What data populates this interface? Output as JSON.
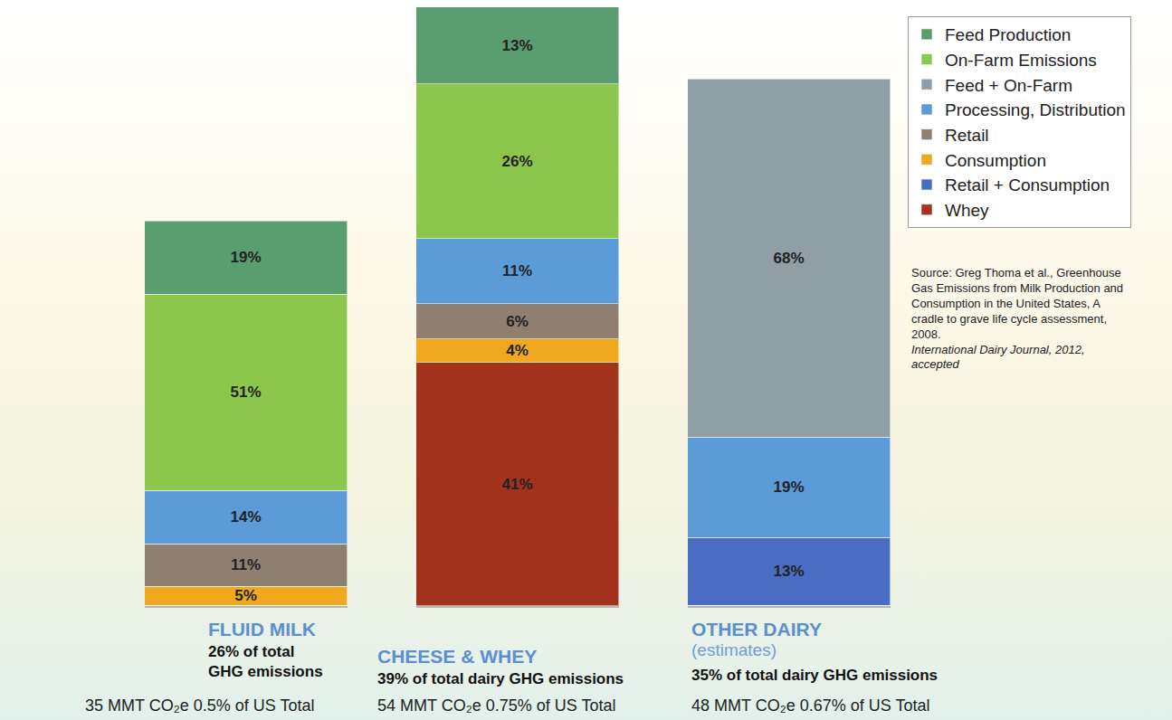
{
  "chart_data": {
    "type": "bar",
    "stacked": true,
    "data_labels": true,
    "tick_labels": false,
    "grid": false,
    "legend": "top right",
    "categories": [
      "FLUID MILK",
      "CHEESE & WHEY",
      "OTHER DAIRY"
    ],
    "notes": [
      null,
      null,
      "(estimates)"
    ],
    "shares": [
      "26% of total GHG emissions",
      "39% of total dairy GHG emissions",
      "35% of total dairy GHG emissions"
    ],
    "emissions": [
      "35 MMT CO₂e 0.5% of US Total",
      "54 MMT CO₂e 0.75% of US Total",
      "48 MMT CO₂e 0.67% of US Total"
    ],
    "totals": [
      35,
      54,
      48
    ],
    "ylim": [
      0,
      101
    ],
    "series": [
      {
        "name": "Feed Production",
        "color": "#5a9e6f",
        "values": [
          19,
          13,
          null
        ],
        "value_labels": [
          "19%",
          "13%",
          null
        ]
      },
      {
        "name": "On-Farm Emissions",
        "color": "#8dc64c",
        "values": [
          51,
          26,
          null
        ],
        "value_labels": [
          "51%",
          "26%",
          null
        ]
      },
      {
        "name": "Feed + On-Farm",
        "color": "#8f9fa5",
        "values": [
          null,
          null,
          68
        ],
        "value_labels": [
          null,
          null,
          "68%"
        ]
      },
      {
        "name": "Processing, Distribution",
        "color": "#5b9bd8",
        "values": [
          14,
          11,
          19
        ],
        "value_labels": [
          "14%",
          "11%",
          "19%"
        ]
      },
      {
        "name": "Retail",
        "color": "#8f7f6e",
        "values": [
          11,
          6,
          null
        ],
        "value_labels": [
          "11%",
          "6%",
          null
        ]
      },
      {
        "name": "Consumption",
        "color": "#f0a91e",
        "values": [
          5,
          4,
          null
        ],
        "value_labels": [
          "5%",
          "4%",
          null
        ]
      },
      {
        "name": "Retail + Consumption",
        "color": "#4a6cc2",
        "values": [
          null,
          null,
          13
        ],
        "value_labels": [
          null,
          null,
          "13%"
        ]
      },
      {
        "name": "Whey",
        "color": "#a3321c",
        "values": [
          null,
          41,
          null
        ],
        "value_labels": [
          null,
          "41%",
          null
        ]
      }
    ],
    "source": "Source: Greg Thoma et al., Greenhouse Gas Emissions from Milk Production and Consumption in the United States, A cradle to grave life cycle assessment, 2008.",
    "source_journal": "International Dairy Journal, 2012, accepted"
  }
}
